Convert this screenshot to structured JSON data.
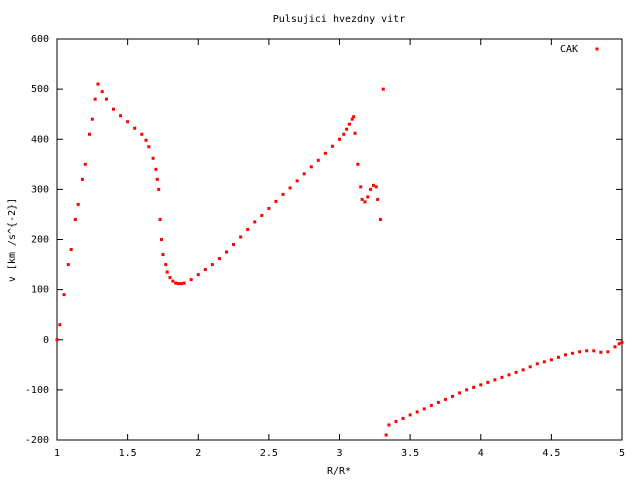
{
  "chart_data": {
    "type": "scatter",
    "title": "Pulsujici hvezdny vitr",
    "x_label": "R/R*",
    "y_label": "v [km /s^{-2}]",
    "x": [
      1.0,
      1.02,
      1.05,
      1.08,
      1.1,
      1.13,
      1.15,
      1.18,
      1.2,
      1.23,
      1.25,
      1.27,
      1.29,
      1.32,
      1.35,
      1.4,
      1.45,
      1.5,
      1.55,
      1.6,
      1.63,
      1.65,
      1.68,
      1.7,
      1.71,
      1.72,
      1.73,
      1.74,
      1.75,
      1.77,
      1.78,
      1.8,
      1.82,
      1.84,
      1.86,
      1.88,
      1.9,
      1.95,
      2.0,
      2.05,
      2.1,
      2.15,
      2.2,
      2.25,
      2.3,
      2.35,
      2.4,
      2.45,
      2.5,
      2.55,
      2.6,
      2.65,
      2.7,
      2.75,
      2.8,
      2.85,
      2.9,
      2.95,
      3.0,
      3.03,
      3.05,
      3.07,
      3.09,
      3.1,
      3.11,
      3.13,
      3.15,
      3.16,
      3.18,
      3.2,
      3.22,
      3.24,
      3.26,
      3.27,
      3.29,
      3.31,
      3.33,
      3.35,
      3.4,
      3.45,
      3.5,
      3.55,
      3.6,
      3.65,
      3.7,
      3.75,
      3.8,
      3.85,
      3.9,
      3.95,
      4.0,
      4.05,
      4.1,
      4.15,
      4.2,
      4.25,
      4.3,
      4.35,
      4.4,
      4.45,
      4.5,
      4.55,
      4.6,
      4.65,
      4.7,
      4.75,
      4.8,
      4.85,
      4.9,
      4.95,
      4.98,
      5.0
    ],
    "series": [
      {
        "name": "CAK",
        "color": "#ff0000",
        "values": [
          0,
          30,
          90,
          150,
          180,
          240,
          270,
          320,
          350,
          410,
          440,
          480,
          510,
          495,
          480,
          460,
          447,
          435,
          422,
          410,
          398,
          385,
          362,
          340,
          320,
          300,
          240,
          200,
          170,
          150,
          135,
          124,
          117,
          113,
          112,
          112,
          113,
          120,
          130,
          140,
          150,
          162,
          175,
          190,
          205,
          220,
          235,
          248,
          262,
          276,
          290,
          303,
          317,
          331,
          345,
          358,
          372,
          386,
          400,
          410,
          420,
          430,
          440,
          445,
          412,
          350,
          305,
          280,
          275,
          285,
          300,
          308,
          305,
          280,
          240,
          500,
          -190,
          -170,
          -163,
          -157,
          -150,
          -144,
          -138,
          -131,
          -125,
          -119,
          -113,
          -106,
          -100,
          -95,
          -90,
          -85,
          -80,
          -75,
          -70,
          -65,
          -60,
          -54,
          -48,
          -44,
          -40,
          -35,
          -30,
          -27,
          -24,
          -22,
          -22,
          -25,
          -24,
          -14,
          -8,
          -5
        ]
      }
    ],
    "xlim": [
      1,
      5
    ],
    "xticks": [
      1,
      1.5,
      2,
      2.5,
      3,
      3.5,
      4,
      4.5,
      5
    ],
    "ylim": [
      -200,
      600
    ],
    "yticks": [
      -200,
      -100,
      0,
      100,
      200,
      300,
      400,
      500,
      600
    ],
    "legend_position": "top right",
    "grid": false
  }
}
